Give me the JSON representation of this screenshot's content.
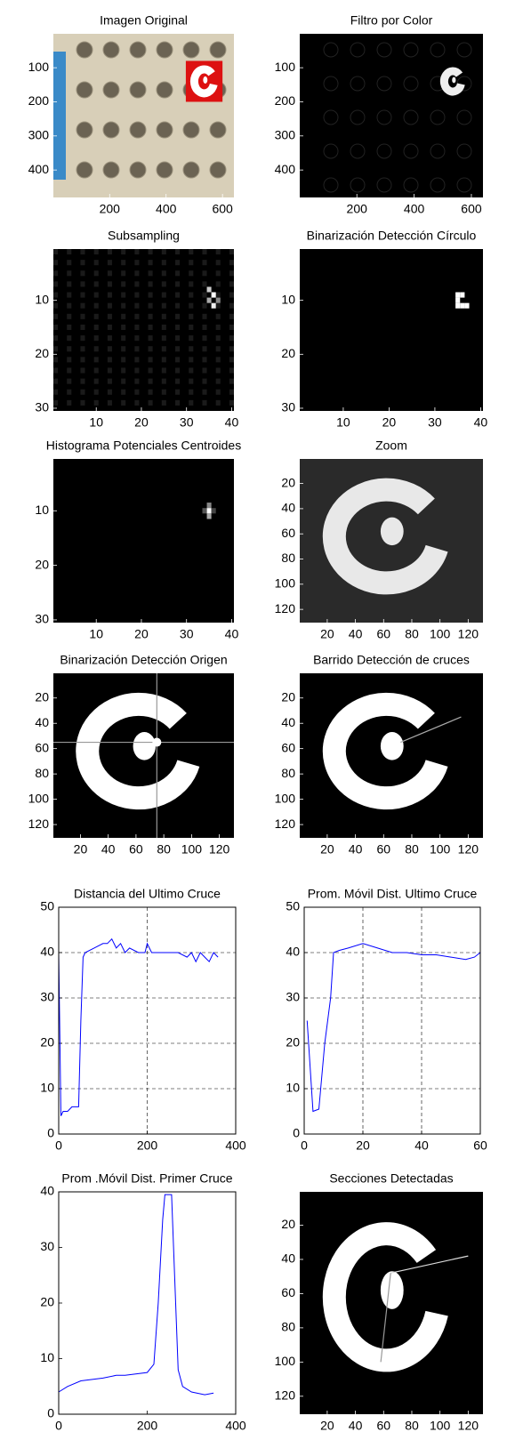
{
  "chart_data": [
    {
      "type": "image",
      "title": "Imagen Original",
      "xlim": [
        0.5,
        640.5
      ],
      "ylim": [
        0.5,
        480.5
      ],
      "xticks": [
        200,
        400,
        600
      ],
      "yticks": [
        100,
        200,
        300,
        400
      ]
    },
    {
      "type": "image",
      "title": "Filtro por Color",
      "xlim": [
        0.5,
        640.5
      ],
      "ylim": [
        0.5,
        480.5
      ],
      "xticks": [
        200,
        400,
        600
      ],
      "yticks": [
        100,
        200,
        300,
        400
      ]
    },
    {
      "type": "image",
      "title": "Subsampling",
      "xlim": [
        0.5,
        40.5
      ],
      "ylim": [
        0.5,
        30.5
      ],
      "xticks": [
        10,
        20,
        30,
        40
      ],
      "yticks": [
        10,
        20,
        30
      ]
    },
    {
      "type": "image",
      "title": "Binarización Detección Círculo",
      "xlim": [
        0.5,
        40.5
      ],
      "ylim": [
        0.5,
        30.5
      ],
      "xticks": [
        10,
        20,
        30,
        40
      ],
      "yticks": [
        10,
        20,
        30
      ]
    },
    {
      "type": "image",
      "title": "Histograma Potenciales Centroides",
      "xlim": [
        0.5,
        40.5
      ],
      "ylim": [
        0.5,
        30.5
      ],
      "xticks": [
        10,
        20,
        30,
        40
      ],
      "yticks": [
        10,
        20,
        30
      ]
    },
    {
      "type": "image",
      "title": "Zoom",
      "xlim": [
        0.5,
        130.5
      ],
      "ylim": [
        0.5,
        130.5
      ],
      "xticks": [
        20,
        40,
        60,
        80,
        100,
        120
      ],
      "yticks": [
        20,
        40,
        60,
        80,
        100,
        120
      ]
    },
    {
      "type": "image",
      "title": "Binarización Detección Origen",
      "xlim": [
        0.5,
        130.5
      ],
      "ylim": [
        0.5,
        130.5
      ],
      "xticks": [
        20,
        40,
        60,
        80,
        100,
        120
      ],
      "yticks": [
        20,
        40,
        60,
        80,
        100,
        120
      ]
    },
    {
      "type": "image",
      "title": "Barrido Detección de cruces",
      "xlim": [
        0.5,
        130.5
      ],
      "ylim": [
        0.5,
        130.5
      ],
      "xticks": [
        20,
        40,
        60,
        80,
        100,
        120
      ],
      "yticks": [
        20,
        40,
        60,
        80,
        100,
        120
      ]
    },
    {
      "type": "line",
      "title": "Distancia del Ultimo Cruce",
      "xlim": [
        0,
        400
      ],
      "ylim": [
        0,
        50
      ],
      "xticks": [
        0,
        200,
        400
      ],
      "yticks": [
        0,
        10,
        20,
        30,
        40,
        50
      ],
      "grid": true,
      "color": "#0000ff",
      "x": [
        0,
        5,
        10,
        20,
        30,
        40,
        45,
        50,
        55,
        60,
        80,
        100,
        110,
        120,
        130,
        140,
        150,
        160,
        180,
        195,
        200,
        210,
        240,
        270,
        290,
        300,
        310,
        320,
        330,
        340,
        350,
        360
      ],
      "values": [
        40,
        4,
        5,
        5,
        6,
        6,
        6,
        25,
        39,
        40,
        41,
        42,
        42,
        43,
        41,
        42,
        40,
        41,
        40,
        40,
        42,
        40,
        40,
        40,
        39,
        40,
        38,
        40,
        39,
        38,
        40,
        39
      ]
    },
    {
      "type": "line",
      "title": "Prom. Móvil Dist. Ultimo Cruce",
      "xlim": [
        0,
        60
      ],
      "ylim": [
        0,
        50
      ],
      "xticks": [
        0,
        20,
        40,
        60
      ],
      "yticks": [
        0,
        10,
        20,
        30,
        40,
        50
      ],
      "grid": true,
      "color": "#0000ff",
      "x": [
        1,
        3,
        5,
        7,
        9,
        10,
        12,
        15,
        20,
        25,
        30,
        35,
        40,
        45,
        50,
        55,
        58,
        60
      ],
      "values": [
        25,
        5,
        5.5,
        20,
        30,
        40,
        40.5,
        41,
        42,
        41,
        40,
        40,
        39.5,
        39.5,
        39,
        38.5,
        39,
        40
      ]
    },
    {
      "type": "line",
      "title": "Prom .Móvil Dist. Primer Cruce",
      "xlim": [
        0,
        400
      ],
      "ylim": [
        0,
        40
      ],
      "xticks": [
        0,
        200,
        400
      ],
      "yticks": [
        0,
        10,
        20,
        30,
        40
      ],
      "grid": false,
      "color": "#0000ff",
      "x": [
        0,
        20,
        50,
        100,
        130,
        150,
        200,
        215,
        225,
        235,
        240,
        255,
        262,
        270,
        280,
        300,
        330,
        350
      ],
      "values": [
        4,
        5,
        6,
        6.5,
        7,
        7,
        7.5,
        9,
        20,
        35,
        39.5,
        39.5,
        25,
        8,
        5,
        4,
        3.5,
        3.8
      ]
    },
    {
      "type": "image",
      "title": "Secciones Detectadas",
      "xlim": [
        0.5,
        130.5
      ],
      "ylim": [
        0.5,
        130.5
      ],
      "xticks": [
        20,
        40,
        60,
        80,
        100,
        120
      ],
      "yticks": [
        20,
        40,
        60,
        80,
        100,
        120
      ]
    }
  ]
}
